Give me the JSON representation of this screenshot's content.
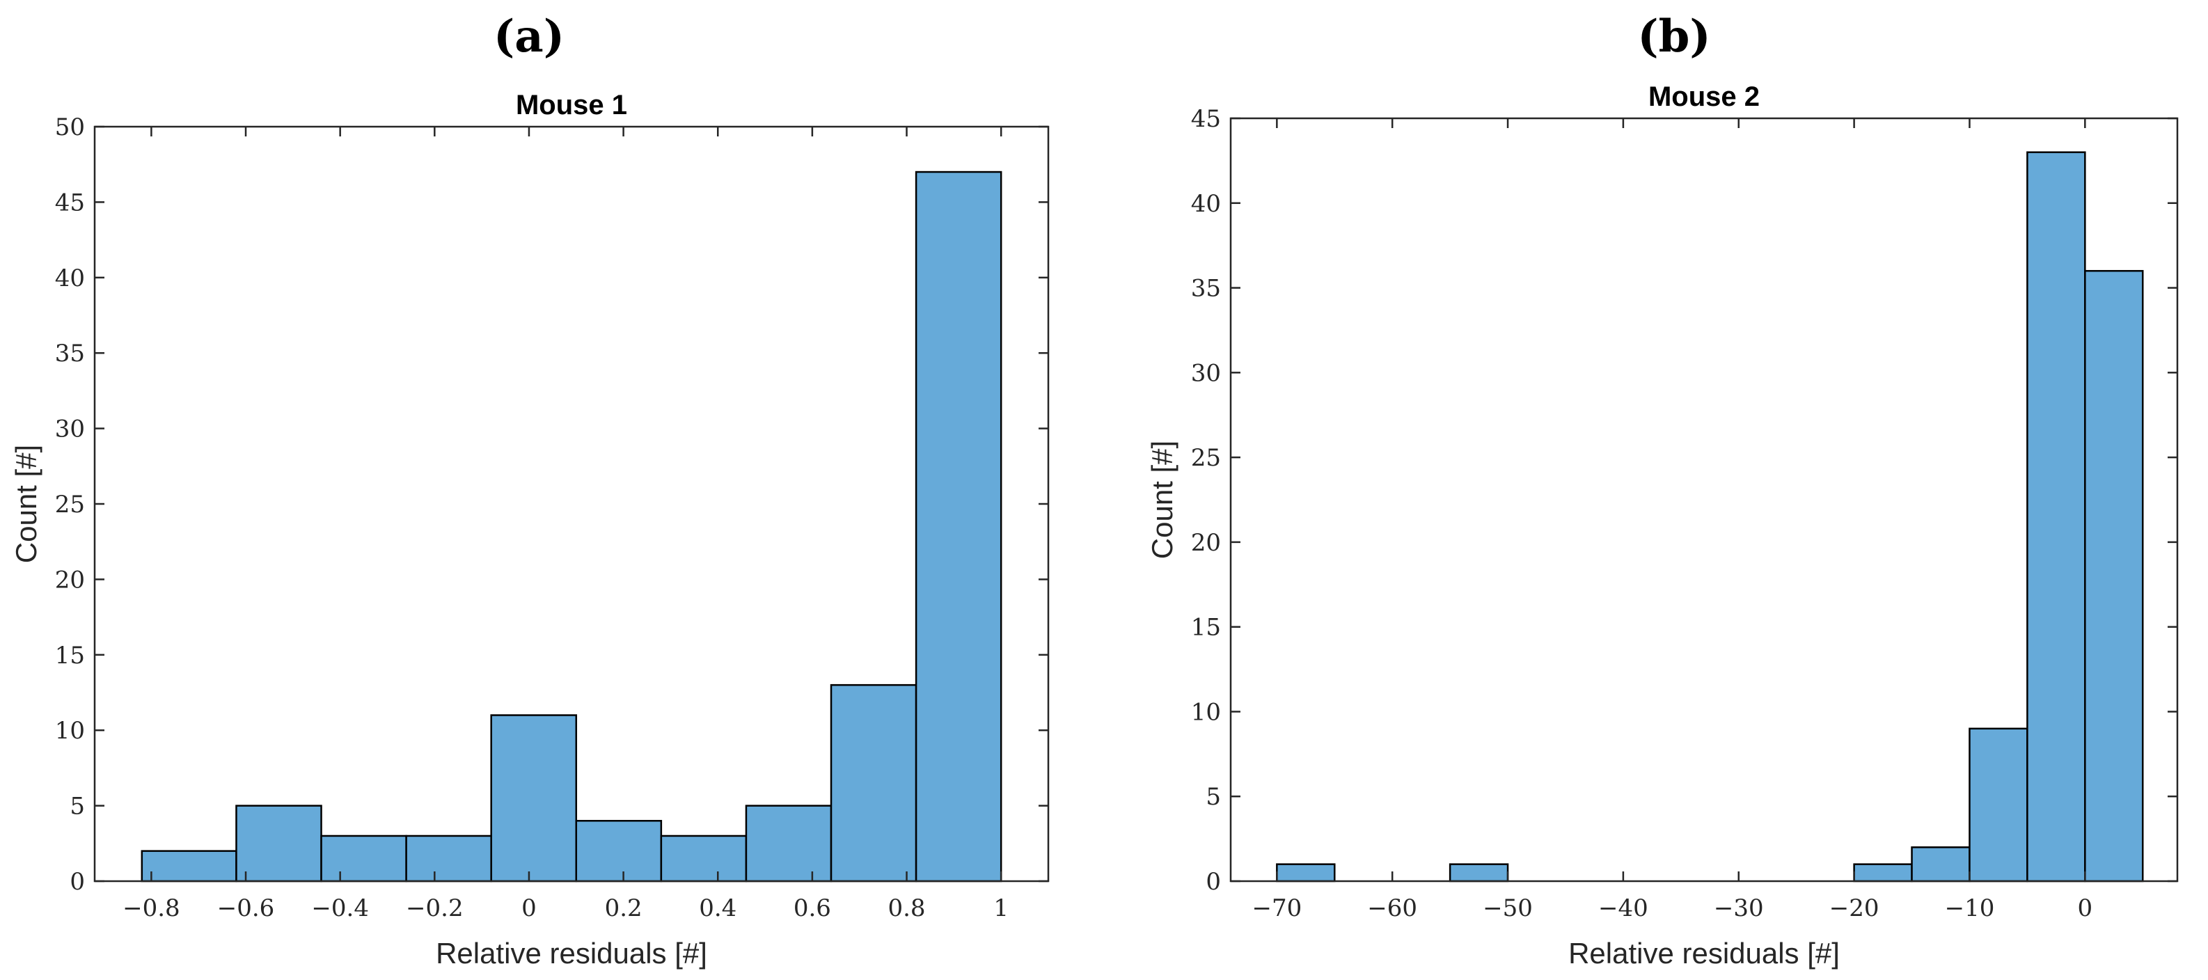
{
  "panels": [
    "(a)",
    "(b)"
  ],
  "colors": {
    "bar_fill": "#66aad9",
    "bar_edge": "#000000",
    "axis": "#262626"
  },
  "chart_data": [
    {
      "type": "bar",
      "title": "Mouse 1",
      "xlabel": "Relative residuals [#]",
      "ylabel": "Count [#]",
      "xlim": [
        -0.92,
        1.1
      ],
      "ylim": [
        0,
        50
      ],
      "xticks": [
        -0.8,
        -0.6,
        -0.4,
        -0.2,
        0,
        0.2,
        0.4,
        0.6,
        0.8,
        1
      ],
      "xtick_labels": [
        "−0.8",
        "−0.6",
        "−0.4",
        "−0.2",
        "0",
        "0.2",
        "0.4",
        "0.6",
        "0.8",
        "1"
      ],
      "yticks": [
        0,
        5,
        10,
        15,
        20,
        25,
        30,
        35,
        40,
        45,
        50
      ],
      "ytick_labels": [
        "0",
        "5",
        "10",
        "15",
        "20",
        "25",
        "30",
        "35",
        "40",
        "45",
        "50"
      ],
      "bin_edges": [
        -0.82,
        -0.62,
        -0.44,
        -0.26,
        -0.08,
        0.1,
        0.28,
        0.46,
        0.64,
        0.82,
        1.0
      ],
      "values": [
        2,
        5,
        3,
        3,
        11,
        4,
        3,
        5,
        13,
        47
      ],
      "grid": false
    },
    {
      "type": "bar",
      "title": "Mouse 2",
      "xlabel": "Relative residuals [#]",
      "ylabel": "Count [#]",
      "xlim": [
        -74,
        8
      ],
      "ylim": [
        0,
        45
      ],
      "xticks": [
        -70,
        -60,
        -50,
        -40,
        -30,
        -20,
        -10,
        0
      ],
      "xtick_labels": [
        "−70",
        "−60",
        "−50",
        "−40",
        "−30",
        "−20",
        "−10",
        "0"
      ],
      "yticks": [
        0,
        5,
        10,
        15,
        20,
        25,
        30,
        35,
        40,
        45
      ],
      "ytick_labels": [
        "0",
        "5",
        "10",
        "15",
        "20",
        "25",
        "30",
        "35",
        "40",
        "45"
      ],
      "bin_edges": [
        -70,
        -65,
        -60,
        -55,
        -50,
        -45,
        -40,
        -35,
        -30,
        -25,
        -20,
        -15,
        -10,
        -5,
        0,
        5
      ],
      "values": [
        1,
        0,
        0,
        1,
        0,
        0,
        0,
        0,
        0,
        0,
        1,
        2,
        9,
        43,
        36
      ],
      "grid": false
    }
  ]
}
